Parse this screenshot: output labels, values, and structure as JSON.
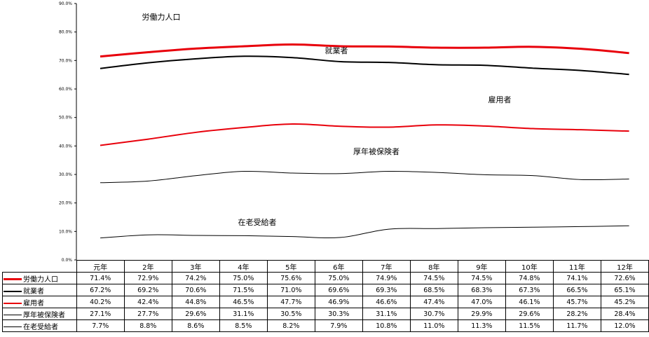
{
  "chart_data": {
    "type": "line",
    "categories": [
      "元年",
      "2年",
      "3年",
      "4年",
      "5年",
      "6年",
      "7年",
      "8年",
      "9年",
      "10年",
      "11年",
      "12年"
    ],
    "ylim": [
      0,
      90
    ],
    "yticks": [
      "0.0%",
      "10.0%",
      "20.0%",
      "30.0%",
      "40.0%",
      "50.0%",
      "60.0%",
      "70.0%",
      "80.0%",
      "90.0%"
    ],
    "grid": false,
    "series": [
      {
        "name": "労働力人口",
        "color": "#e8000b",
        "stroke": "thick",
        "values": [
          71.4,
          72.9,
          74.2,
          75.0,
          75.6,
          75.0,
          74.9,
          74.5,
          74.5,
          74.8,
          74.1,
          72.6
        ],
        "labels": [
          "71.4%",
          "72.9%",
          "74.2%",
          "75.0%",
          "75.6%",
          "75.0%",
          "74.9%",
          "74.5%",
          "74.5%",
          "74.8%",
          "74.1%",
          "72.6%"
        ]
      },
      {
        "name": "就業者",
        "color": "#000000",
        "stroke": "medium",
        "values": [
          67.2,
          69.2,
          70.6,
          71.5,
          71.0,
          69.6,
          69.3,
          68.5,
          68.3,
          67.3,
          66.5,
          65.1
        ],
        "labels": [
          "67.2%",
          "69.2%",
          "70.6%",
          "71.5%",
          "71.0%",
          "69.6%",
          "69.3%",
          "68.5%",
          "68.3%",
          "67.3%",
          "66.5%",
          "65.1%"
        ]
      },
      {
        "name": "雇用者",
        "color": "#e8000b",
        "stroke": "medium",
        "values": [
          40.2,
          42.4,
          44.8,
          46.5,
          47.7,
          46.9,
          46.6,
          47.4,
          47.0,
          46.1,
          45.7,
          45.2
        ],
        "labels": [
          "40.2%",
          "42.4%",
          "44.8%",
          "46.5%",
          "47.7%",
          "46.9%",
          "46.6%",
          "47.4%",
          "47.0%",
          "46.1%",
          "45.7%",
          "45.2%"
        ]
      },
      {
        "name": "厚年被保険者",
        "color": "#000000",
        "stroke": "thin",
        "values": [
          27.1,
          27.7,
          29.6,
          31.1,
          30.5,
          30.3,
          31.1,
          30.7,
          29.9,
          29.6,
          28.2,
          28.4
        ],
        "labels": [
          "27.1%",
          "27.7%",
          "29.6%",
          "31.1%",
          "30.5%",
          "30.3%",
          "31.1%",
          "30.7%",
          "29.9%",
          "29.6%",
          "28.2%",
          "28.4%"
        ]
      },
      {
        "name": "在老受給者",
        "color": "#000000",
        "stroke": "thin",
        "values": [
          7.7,
          8.8,
          8.6,
          8.5,
          8.2,
          7.9,
          10.8,
          11.0,
          11.3,
          11.5,
          11.7,
          12.0
        ],
        "labels": [
          "7.7%",
          "8.8%",
          "8.6%",
          "8.5%",
          "8.2%",
          "7.9%",
          "10.8%",
          "11.0%",
          "11.3%",
          "11.5%",
          "11.7%",
          "12.0%"
        ]
      }
    ]
  }
}
